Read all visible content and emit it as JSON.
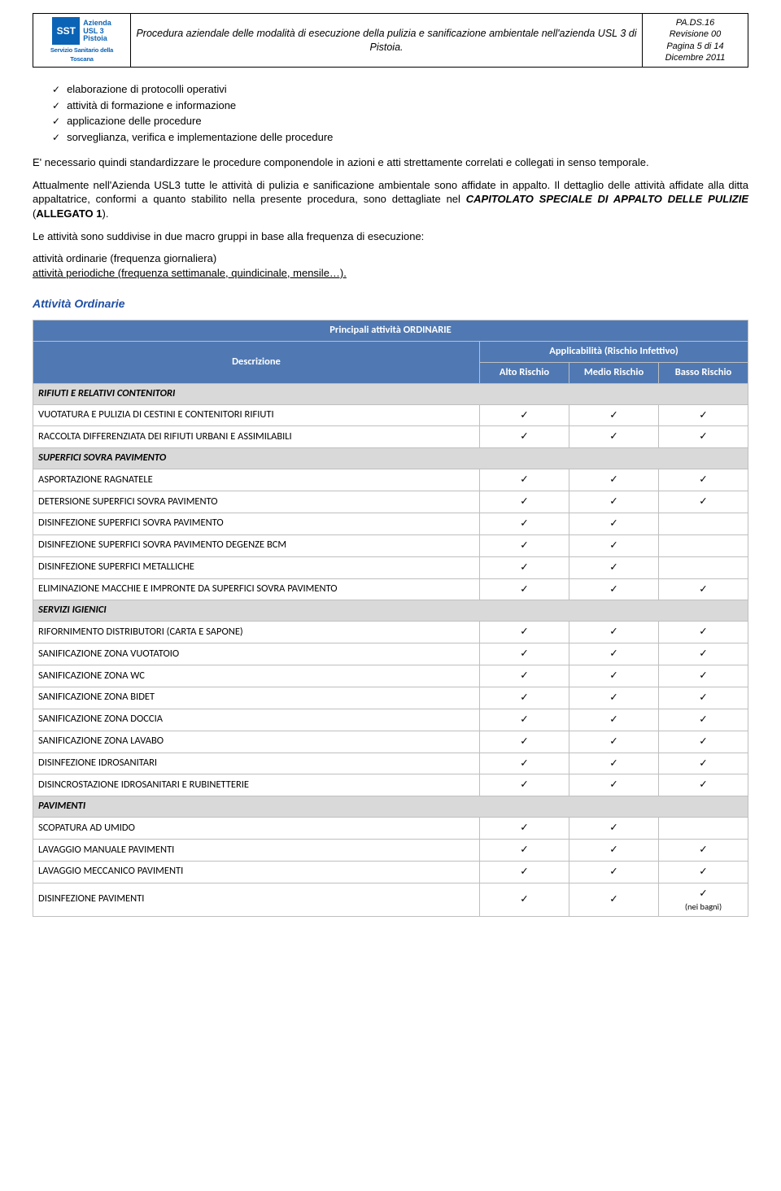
{
  "header": {
    "logo_abbrev": "SST",
    "logo_line1": "Azienda",
    "logo_line2": "USL 3",
    "logo_line3": "Pistoia",
    "logo_sub": "Servizio Sanitario della Toscana",
    "title": "Procedura aziendale delle modalità di esecuzione della pulizia e sanificazione ambientale nell'azienda USL 3 di Pistoia.",
    "meta1": "PA.DS.16",
    "meta2": "Revisione 00",
    "meta3": "Pagina 5 di 14",
    "meta4": "Dicembre 2011"
  },
  "checklist": [
    "elaborazione di protocolli operativi",
    "attività di formazione e informazione",
    "applicazione delle procedure",
    "sorveglianza, verifica e implementazione delle procedure"
  ],
  "para1": "E' necessario quindi standardizzare le procedure componendole in azioni e atti strettamente correlati e collegati in senso temporale.",
  "para2_a": "Attualmente nell'Azienda USL3 tutte le attività di pulizia e sanificazione ambientale sono affidate in appalto. Il dettaglio delle attività affidate alla ditta appaltatrice, conformi a quanto stabilito nella presente procedura, sono dettagliate nel ",
  "para2_b": "CAPITOLATO SPECIALE DI APPALTO DELLE PULIZIE",
  "para2_c": " (",
  "para2_d": "ALLEGATO 1",
  "para2_e": ").",
  "para3": "Le attività sono suddivise in due macro gruppi in base alla frequenza di esecuzione:",
  "para4a": "attività ordinarie (frequenza giornaliera)",
  "para4b": "attività periodiche (frequenza settimanale, quindicinale, mensile…).",
  "section_title": "Attività Ordinarie",
  "table": {
    "super_header": "Principali attività ORDINARIE",
    "desc_label": "Descrizione",
    "applic_label": "Applicabilità (Rischio Infettivo)",
    "col_alto": "Alto Rischio",
    "col_medio": "Medio Rischio",
    "col_basso": "Basso Rischio",
    "check": "✓",
    "groups": [
      {
        "label": "RIFIUTI E RELATIVI CONTENITORI",
        "rows": [
          {
            "d": "VUOTATURA E PULIZIA DI CESTINI E CONTENITORI RIFIUTI",
            "a": true,
            "m": true,
            "b": true
          },
          {
            "d": "RACCOLTA DIFFERENZIATA DEI RIFIUTI URBANI E ASSIMILABILI",
            "a": true,
            "m": true,
            "b": true
          }
        ]
      },
      {
        "label": "SUPERFICI SOVRA PAVIMENTO",
        "rows": [
          {
            "d": "ASPORTAZIONE RAGNATELE",
            "a": true,
            "m": true,
            "b": true
          },
          {
            "d": "DETERSIONE SUPERFICI SOVRA PAVIMENTO",
            "a": true,
            "m": true,
            "b": true
          },
          {
            "d": "DISINFEZIONE SUPERFICI SOVRA PAVIMENTO",
            "a": true,
            "m": true,
            "b": false
          },
          {
            "d": "DISINFEZIONE SUPERFICI SOVRA PAVIMENTO DEGENZE BCM",
            "a": true,
            "m": true,
            "b": false
          },
          {
            "d": "DISINFEZIONE SUPERFICI METALLICHE",
            "a": true,
            "m": true,
            "b": false
          },
          {
            "d": "ELIMINAZIONE MACCHIE E IMPRONTE DA SUPERFICI SOVRA PAVIMENTO",
            "a": true,
            "m": true,
            "b": true
          }
        ]
      },
      {
        "label": "SERVIZI IGIENICI",
        "rows": [
          {
            "d": "RIFORNIMENTO DISTRIBUTORI (CARTA E SAPONE)",
            "a": true,
            "m": true,
            "b": true
          },
          {
            "d": "SANIFICAZIONE ZONA VUOTATOIO",
            "a": true,
            "m": true,
            "b": true
          },
          {
            "d": "SANIFICAZIONE ZONA WC",
            "a": true,
            "m": true,
            "b": true
          },
          {
            "d": "SANIFICAZIONE ZONA BIDET",
            "a": true,
            "m": true,
            "b": true
          },
          {
            "d": "SANIFICAZIONE ZONA DOCCIA",
            "a": true,
            "m": true,
            "b": true
          },
          {
            "d": "SANIFICAZIONE ZONA LAVABO",
            "a": true,
            "m": true,
            "b": true
          },
          {
            "d": "DISINFEZIONE IDROSANITARI",
            "a": true,
            "m": true,
            "b": true
          },
          {
            "d": "DISINCROSTAZIONE IDROSANITARI E RUBINETTERIE",
            "a": true,
            "m": true,
            "b": true
          }
        ]
      },
      {
        "label": "PAVIMENTI",
        "rows": [
          {
            "d": "SCOPATURA AD UMIDO",
            "a": true,
            "m": true,
            "b": false
          },
          {
            "d": "LAVAGGIO MANUALE PAVIMENTI",
            "a": true,
            "m": true,
            "b": true
          },
          {
            "d": "LAVAGGIO MECCANICO PAVIMENTI",
            "a": true,
            "m": true,
            "b": true
          },
          {
            "d": "DISINFEZIONE PAVIMENTI",
            "a": true,
            "m": true,
            "b": true,
            "bnote": "(nei bagni)"
          }
        ]
      }
    ]
  }
}
